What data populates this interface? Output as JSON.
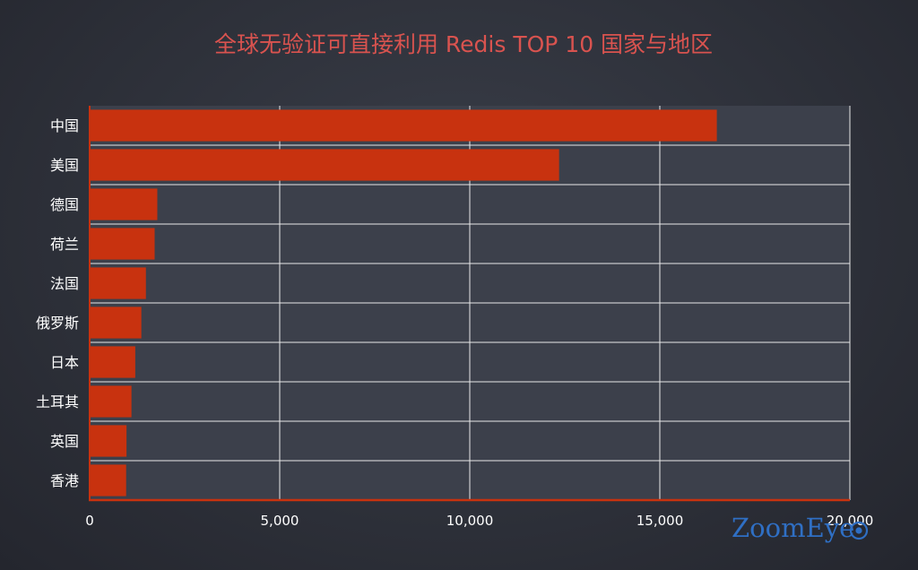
{
  "chart_data": {
    "type": "bar",
    "orientation": "horizontal",
    "title": "全球无验证可直接利用 Redis TOP 10 国家与地区",
    "xlabel": "",
    "ylabel": "",
    "categories": [
      "中国",
      "美国",
      "德国",
      "荷兰",
      "法国",
      "俄罗斯",
      "日本",
      "土耳其",
      "英国",
      "香港"
    ],
    "values": [
      16500,
      12350,
      1780,
      1710,
      1480,
      1360,
      1200,
      1100,
      970,
      960
    ],
    "xlim": [
      0,
      20000
    ],
    "x_ticks": [
      0,
      5000,
      10000,
      15000,
      20000
    ],
    "x_tick_labels": [
      "0",
      "5,000",
      "10,000",
      "15,000",
      "20,000"
    ],
    "grid": true,
    "legend": "none"
  },
  "colors": {
    "bar": "#c8320f",
    "plot_background": "#3c404b",
    "grid": "#e8e8e8",
    "axis": "#c8320f",
    "title": "#d9534f",
    "text": "#ffffff",
    "watermark": "#2f6fc4"
  },
  "watermark": {
    "text": "ZoomEye"
  }
}
